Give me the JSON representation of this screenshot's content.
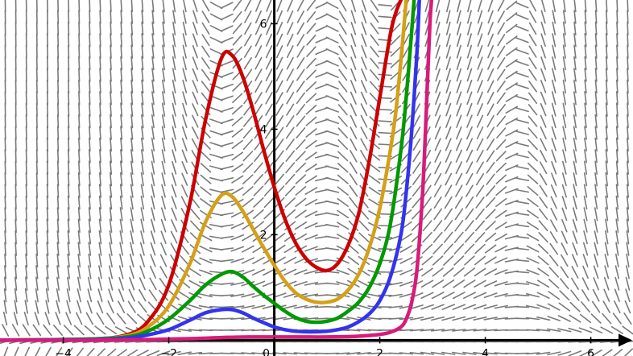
{
  "chart_data": {
    "type": "line",
    "title": "",
    "xlabel": "",
    "ylabel": "",
    "xlim": [
      -5.2,
      6.8
    ],
    "ylim": [
      -0.3,
      6.45
    ],
    "x_ticks": [
      {
        "value": -4,
        "label": "−4"
      },
      {
        "value": -2,
        "label": "−2"
      },
      {
        "value": 0,
        "label": "0"
      },
      {
        "value": 2,
        "label": "2"
      },
      {
        "value": 4,
        "label": "4"
      },
      {
        "value": 6,
        "label": "6"
      }
    ],
    "y_ticks": [
      {
        "value": 2,
        "label": "2"
      },
      {
        "value": 4,
        "label": "4"
      },
      {
        "value": 6,
        "label": "6"
      }
    ],
    "grid": false,
    "direction_field": {
      "visible": true,
      "color": "#7a7a7a",
      "style": "dashed line segments"
    },
    "series": [
      {
        "color": "#cc0000",
        "x": [
          -5.2,
          -3.5,
          -2.8,
          -2.4,
          -2.0,
          -1.6,
          -1.3,
          -1.0,
          -0.8,
          -0.6,
          -0.4,
          -0.2,
          0.0,
          0.2,
          0.4,
          0.6,
          0.8,
          1.0,
          1.2,
          1.4,
          1.6,
          1.8,
          2.0,
          2.2,
          2.3,
          2.4
        ],
        "y": [
          0.0,
          0.02,
          0.1,
          0.35,
          1.05,
          2.6,
          4.2,
          5.35,
          5.4,
          5.0,
          4.35,
          3.6,
          2.9,
          2.3,
          1.85,
          1.55,
          1.38,
          1.32,
          1.45,
          1.8,
          2.4,
          3.4,
          4.6,
          5.8,
          6.2,
          6.45
        ]
      },
      {
        "color": "#d4a017",
        "x": [
          -5.2,
          -3.5,
          -2.8,
          -2.4,
          -2.0,
          -1.6,
          -1.3,
          -1.0,
          -0.8,
          -0.6,
          -0.4,
          -0.2,
          0.0,
          0.2,
          0.4,
          0.6,
          0.8,
          1.0,
          1.2,
          1.4,
          1.6,
          1.8,
          2.0,
          2.2,
          2.3,
          2.4,
          2.5
        ],
        "y": [
          0.0,
          0.02,
          0.08,
          0.25,
          0.65,
          1.45,
          2.25,
          2.75,
          2.72,
          2.45,
          2.1,
          1.75,
          1.42,
          1.12,
          0.9,
          0.78,
          0.72,
          0.72,
          0.78,
          0.95,
          1.25,
          1.75,
          2.5,
          3.6,
          4.3,
          5.3,
          6.45
        ]
      },
      {
        "color": "#009900",
        "x": [
          -5.2,
          -3.5,
          -2.8,
          -2.4,
          -2.0,
          -1.6,
          -1.3,
          -1.0,
          -0.8,
          -0.6,
          -0.4,
          -0.2,
          0.0,
          0.2,
          0.4,
          0.6,
          0.8,
          1.0,
          1.2,
          1.4,
          1.6,
          1.8,
          2.0,
          2.2,
          2.4,
          2.5,
          2.6,
          2.65
        ],
        "y": [
          0.0,
          0.02,
          0.06,
          0.17,
          0.4,
          0.75,
          1.05,
          1.25,
          1.3,
          1.2,
          1.02,
          0.85,
          0.7,
          0.55,
          0.43,
          0.36,
          0.34,
          0.36,
          0.42,
          0.55,
          0.72,
          1.0,
          1.45,
          2.2,
          3.6,
          4.6,
          5.8,
          6.45
        ]
      },
      {
        "color": "#3333ee",
        "x": [
          -5.2,
          -3.5,
          -2.8,
          -2.4,
          -2.0,
          -1.6,
          -1.3,
          -1.0,
          -0.8,
          -0.6,
          -0.4,
          -0.2,
          0.0,
          0.2,
          0.4,
          0.6,
          0.8,
          1.0,
          1.2,
          1.4,
          1.6,
          1.8,
          2.0,
          2.2,
          2.4,
          2.5,
          2.6,
          2.7,
          2.75
        ],
        "y": [
          0.0,
          0.01,
          0.04,
          0.1,
          0.2,
          0.38,
          0.52,
          0.58,
          0.58,
          0.52,
          0.42,
          0.33,
          0.25,
          0.2,
          0.17,
          0.16,
          0.16,
          0.17,
          0.2,
          0.25,
          0.35,
          0.5,
          0.75,
          1.2,
          2.0,
          2.8,
          3.9,
          5.4,
          6.45
        ]
      },
      {
        "color": "#d81b7a",
        "x": [
          -5.2,
          -3.5,
          -2.5,
          -2.0,
          -1.5,
          -1.0,
          -0.5,
          0.0,
          0.5,
          1.0,
          1.5,
          1.8,
          2.0,
          2.2,
          2.4,
          2.5,
          2.6,
          2.7,
          2.8,
          2.85,
          2.9,
          2.95,
          2.98
        ],
        "y": [
          0.0,
          0.0,
          0.01,
          0.02,
          0.03,
          0.05,
          0.06,
          0.06,
          0.06,
          0.06,
          0.07,
          0.09,
          0.11,
          0.15,
          0.25,
          0.4,
          0.7,
          1.3,
          2.6,
          3.6,
          4.8,
          6.0,
          6.45
        ]
      }
    ]
  }
}
